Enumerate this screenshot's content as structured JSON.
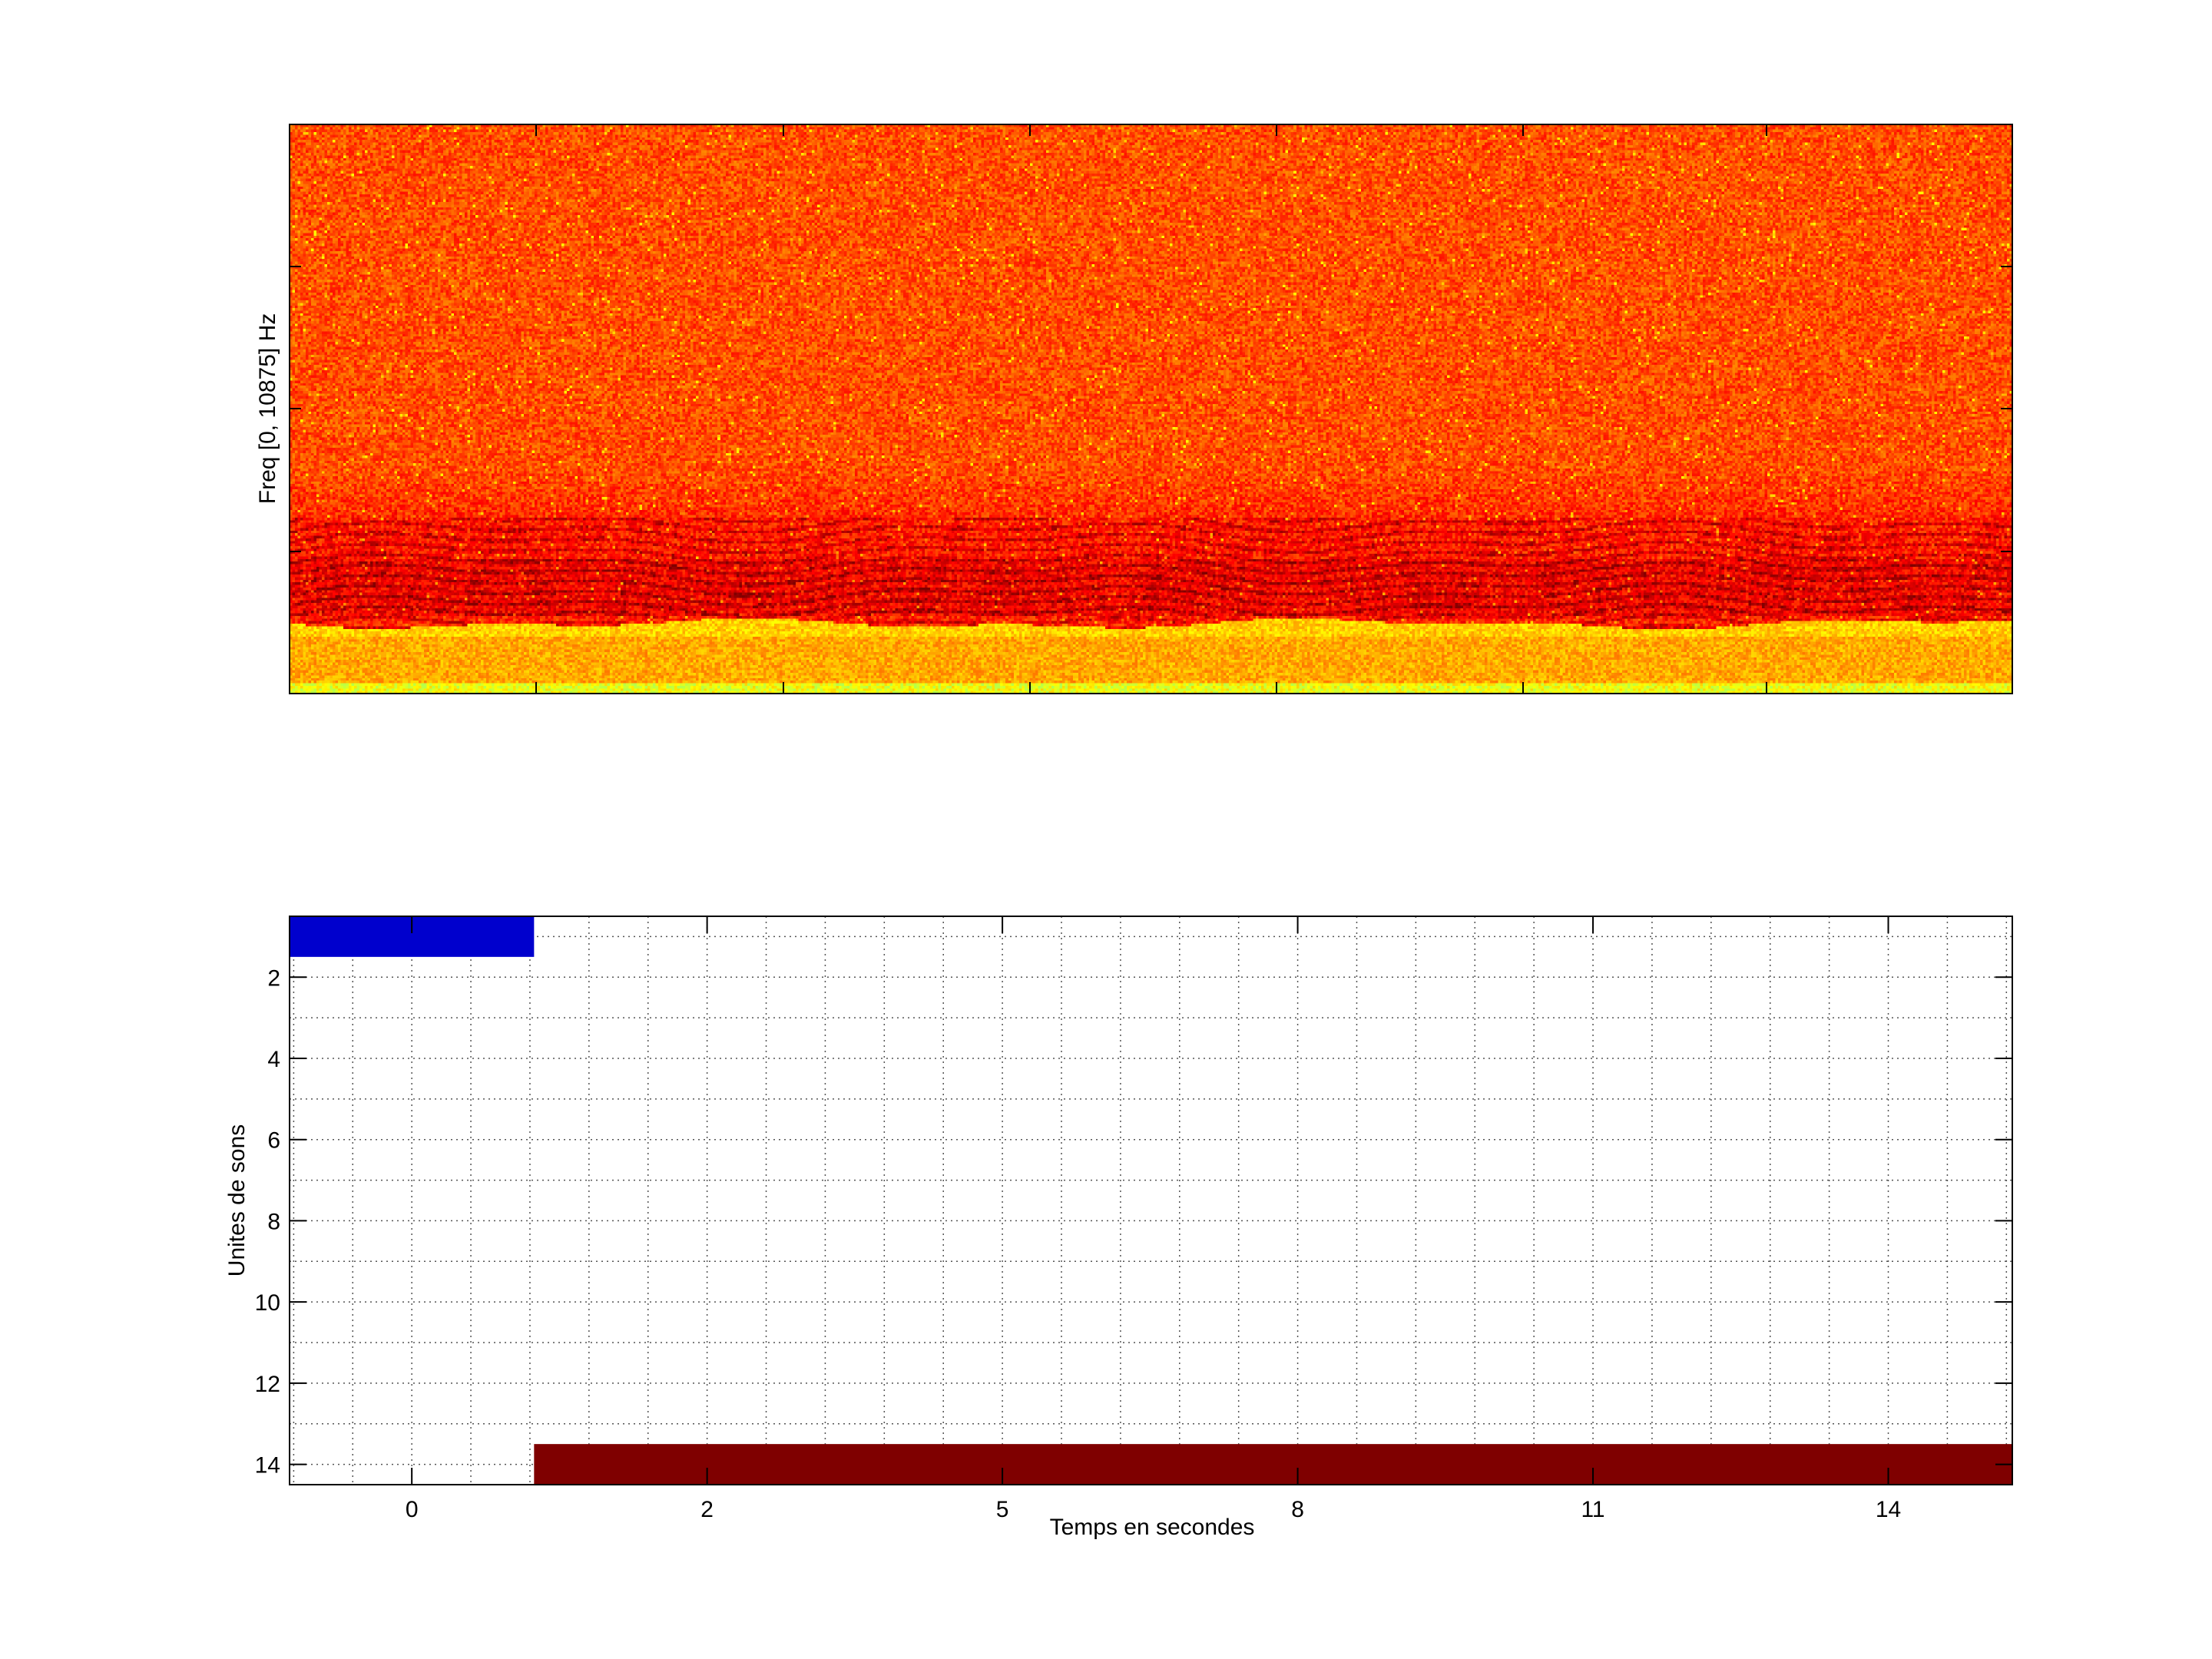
{
  "chart_data": [
    {
      "type": "heatmap",
      "title": "",
      "xlabel": "",
      "ylabel": "Freq [0, 10875] Hz",
      "colormap": "jet",
      "xtick_labels": [],
      "ytick_labels": [],
      "description_visible": "spectrogram, orange-red noise floor with darker red harmonic stack in lower band, yellow low-frequency band"
    },
    {
      "type": "heatmap",
      "title": "",
      "xlabel": "Temps en secondes",
      "ylabel": "Unites de sons",
      "grid": true,
      "y_reversed": true,
      "ylim": [
        0.5,
        14.5
      ],
      "yticks": [
        2,
        4,
        6,
        8,
        10,
        12,
        14
      ],
      "ytick_labels": [
        "2",
        "4",
        "6",
        "8",
        "10",
        "12",
        "14"
      ],
      "xlim": [
        -2.07,
        27.1
      ],
      "xticks": [
        0,
        5,
        10,
        15,
        20,
        25
      ],
      "xtick_labels": [
        "0",
        "2",
        "5",
        "8",
        "11",
        "14"
      ],
      "segments": [
        {
          "unit": 1,
          "x_start": -2.07,
          "x_end": 2.07,
          "color": "#0000cd"
        },
        {
          "unit": 14,
          "x_start": 2.07,
          "x_end": 27.1,
          "color": "#7f0000"
        }
      ]
    }
  ]
}
